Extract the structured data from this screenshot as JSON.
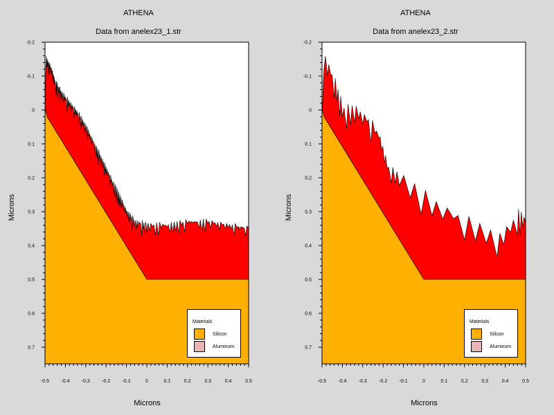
{
  "chart_data": [
    {
      "type": "area",
      "title": "ATHENA",
      "subtitle": "Data from anelex23_1.str",
      "xlabel": "Microns",
      "ylabel": "Microns",
      "xlim": [
        -0.5,
        0.5
      ],
      "ylim": [
        -0.2,
        0.75
      ],
      "y_inverted": true,
      "x_ticks": [
        "-0.5",
        "-0.4",
        "-0.3",
        "-0.2",
        "-0.1",
        "0",
        "0.1",
        "0.2",
        "0.3",
        "0.4",
        "0.5"
      ],
      "y_ticks": [
        "-0.2",
        "-0.1",
        "0",
        "0.1",
        "0.2",
        "0.3",
        "0.4",
        "0.5",
        "0.6",
        "0.7"
      ],
      "legend": {
        "title": "Materials",
        "position": "bottom-right",
        "entries": [
          {
            "name": "Silicon",
            "color": "#ffb000"
          },
          {
            "name": "Aluminum",
            "color": "#e8b4b4"
          }
        ]
      },
      "regions": {
        "silicon_surface": [
          [
            -0.5,
            -0.005
          ],
          [
            -0.49,
            0.02
          ],
          [
            0.0,
            0.5
          ],
          [
            0.5,
            0.5
          ]
        ],
        "aluminum_top": [
          [
            -0.5,
            0.0
          ],
          [
            -0.495,
            -0.15
          ],
          [
            -0.47,
            -0.12
          ],
          [
            -0.45,
            -0.08
          ],
          [
            -0.42,
            -0.05
          ],
          [
            -0.38,
            -0.02
          ],
          [
            -0.34,
            0.01
          ],
          [
            -0.3,
            0.05
          ],
          [
            -0.26,
            0.1
          ],
          [
            -0.22,
            0.15
          ],
          [
            -0.18,
            0.2
          ],
          [
            -0.14,
            0.25
          ],
          [
            -0.1,
            0.3
          ],
          [
            -0.06,
            0.33
          ],
          [
            0.0,
            0.34
          ],
          [
            0.1,
            0.34
          ],
          [
            0.2,
            0.33
          ],
          [
            0.3,
            0.33
          ],
          [
            0.4,
            0.34
          ],
          [
            0.5,
            0.35
          ]
        ]
      }
    },
    {
      "type": "area",
      "title": "ATHENA",
      "subtitle": "Data from anelex23_2.str",
      "xlabel": "Microns",
      "ylabel": "Microns",
      "xlim": [
        -0.5,
        0.5
      ],
      "ylim": [
        -0.2,
        0.75
      ],
      "y_inverted": true,
      "x_ticks": [
        "-0.5",
        "-0.4",
        "-0.3",
        "-0.2",
        "-0.1",
        "0",
        "0.1",
        "0.2",
        "0.3",
        "0.4",
        "0.5"
      ],
      "y_ticks": [
        "-0.2",
        "-0.1",
        "0",
        "0.1",
        "0.2",
        "0.3",
        "0.4",
        "0.5",
        "0.6",
        "0.7"
      ],
      "legend": {
        "title": "Materials",
        "position": "bottom-right",
        "entries": [
          {
            "name": "Silicon",
            "color": "#ffb000"
          },
          {
            "name": "Aluminum",
            "color": "#e8b4b4"
          }
        ]
      },
      "regions": {
        "silicon_surface": [
          [
            -0.5,
            -0.005
          ],
          [
            -0.49,
            0.02
          ],
          [
            0.0,
            0.5
          ],
          [
            0.5,
            0.5
          ]
        ],
        "aluminum_top": [
          [
            -0.5,
            0.0
          ],
          [
            -0.49,
            -0.15
          ],
          [
            -0.44,
            -0.08
          ],
          [
            -0.4,
            0.0
          ],
          [
            -0.34,
            0.0
          ],
          [
            -0.28,
            0.03
          ],
          [
            -0.22,
            0.08
          ],
          [
            -0.18,
            0.17
          ],
          [
            -0.12,
            0.2
          ],
          [
            0.04,
            0.28
          ],
          [
            0.2,
            0.33
          ],
          [
            0.36,
            0.38
          ],
          [
            0.46,
            0.31
          ],
          [
            0.5,
            0.33
          ]
        ]
      }
    }
  ]
}
